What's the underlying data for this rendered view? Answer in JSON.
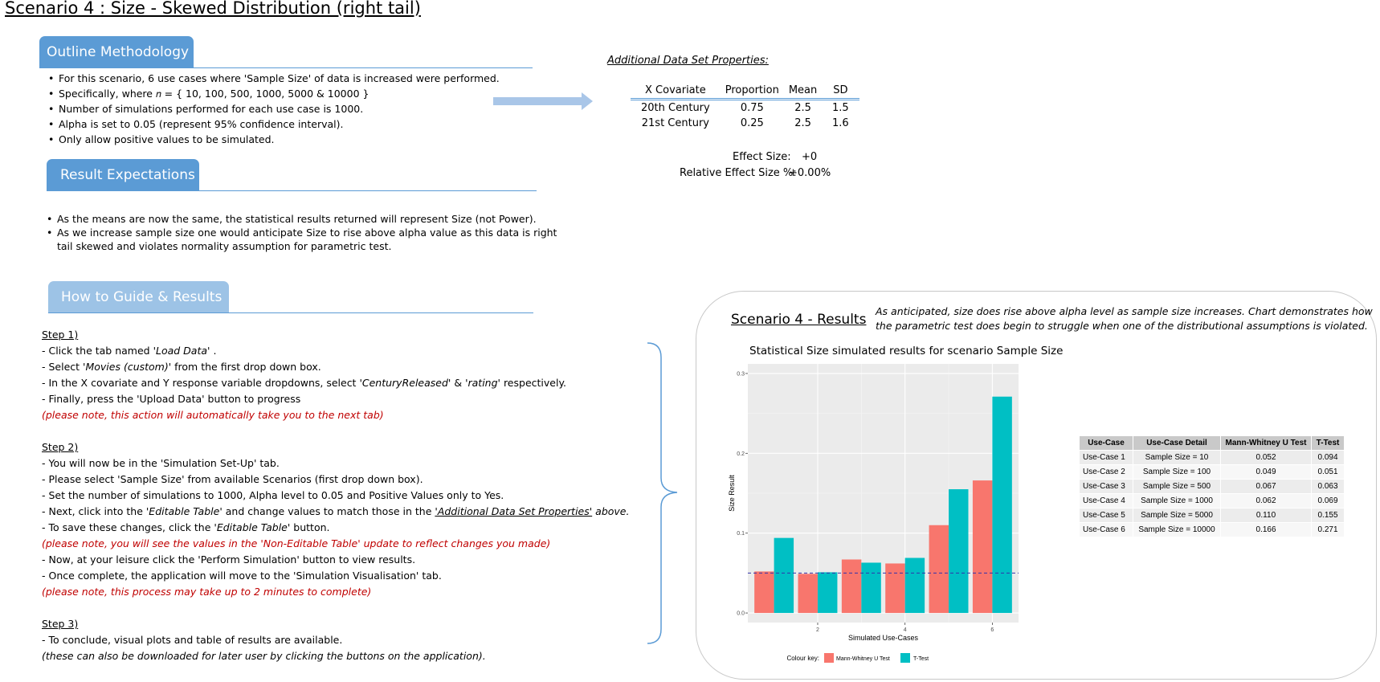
{
  "page_title": "Scenario 4 : Size - Skewed Distribution (right tail)",
  "outline": {
    "heading": "Outline Methodology",
    "bullets": [
      "For this scenario, 6 use cases where 'Sample Size' of data is increased were performed.",
      "Specifically, where 𝑛 = { 10, 100, 500, 1000, 5000 & 10000 }",
      "Number of simulations performed for each use case is 1000.",
      "Alpha is set to 0.05 (represent 95% confidence interval).",
      "Only allow positive values to be simulated."
    ]
  },
  "expectations": {
    "heading": "Result Expectations",
    "bullets": [
      "As the means are now the same, the statistical results returned will represent Size (not Power).",
      "As we increase sample size one would anticipate Size to rise above alpha value as this data is right",
      "tail skewed and violates normality assumption for parametric test."
    ]
  },
  "guide": {
    "heading": "How to Guide & Results",
    "step1": {
      "title": "Step 1)",
      "l1a": "- Click the tab named ",
      "l1b": "'Load Data'",
      "l1c": " .",
      "l2a": "- Select ",
      "l2b": "'Movies (custom)'",
      "l2c": "  from the first drop down box.",
      "l3a": "- In the X covariate and Y response variable dropdowns, select ",
      "l3b": "'CenturyReleased'",
      "l3c": "  & ",
      "l3d": "'rating'",
      "l3e": "  respectively.",
      "l4": "- Finally, press the 'Upload Data' button to progress",
      "note": "(please note, this action will automatically take you to the next tab)"
    },
    "step2": {
      "title": "Step 2)",
      "l1": "- You will now be in the 'Simulation Set-Up' tab.",
      "l2": "- Please select 'Sample Size' from available Scenarios (first drop down box).",
      "l3": "- Set the number of simulations to 1000, Alpha level to 0.05 and Positive Values only to Yes.",
      "l4a": "- Next, click into the ",
      "l4b": "'Editable Table'",
      "l4c": "  and change values to match those in the  ",
      "l4d": "'Additional Data Set Properties'",
      "l4e": "  above.",
      "l5a": "- To save these changes, click the ",
      "l5b": "'Editable Table'",
      "l5c": "  button.",
      "note1": "(please note, you will see the values in the 'Non-Editable Table' update to reflect changes you made)",
      "l6": "- Now, at your leisure click the 'Perform Simulation' button to view results.",
      "l7": "- Once complete, the application will move to the 'Simulation Visualisation' tab.",
      "note2": "(please note, this process may take up to 2 minutes to complete)"
    },
    "step3": {
      "title": "Step 3)",
      "l1": "- To conclude, visual plots and table of results are available.",
      "l2": " (these can also be downloaded for later user by clicking the buttons on the application)."
    }
  },
  "properties": {
    "title": "Additional Data Set Properties:",
    "headers": [
      "X Covariate",
      "Proportion",
      "Mean",
      "SD"
    ],
    "rows": [
      [
        "20th Century",
        "0.75",
        "2.5",
        "1.5"
      ],
      [
        "21st Century",
        "0.25",
        "2.5",
        "1.6"
      ]
    ],
    "effect_size_label": "Effect Size:",
    "effect_size_value": "+0",
    "relative_label": "Relative Effect Size %:",
    "relative_value": "+0.00%"
  },
  "results": {
    "heading": "Scenario 4 - Results",
    "note_line1": "As anticipated, size does rise above alpha level as sample size increases. Chart demonstrates how",
    "note_line2": "the parametric test does begin to struggle when one of the distributional assumptions is violated.",
    "table": {
      "headers": [
        "Use-Case",
        "Use-Case Detail",
        "Mann-Whitney U Test",
        "T-Test"
      ],
      "rows": [
        [
          "Use-Case 1",
          "Sample Size = 10",
          "0.052",
          "0.094"
        ],
        [
          "Use-Case 2",
          "Sample Size = 100",
          "0.049",
          "0.051"
        ],
        [
          "Use-Case 3",
          "Sample Size = 500",
          "0.067",
          "0.063"
        ],
        [
          "Use-Case 4",
          "Sample Size = 1000",
          "0.062",
          "0.069"
        ],
        [
          "Use-Case 5",
          "Sample Size = 5000",
          "0.110",
          "0.155"
        ],
        [
          "Use-Case 6",
          "Sample Size = 10000",
          "0.166",
          "0.271"
        ]
      ]
    }
  },
  "colors": {
    "accent_blue": "#5b9bd5",
    "tab_light_blue": "#9dc3e6",
    "note_red": "#c00000",
    "series_mw": "#f8766d",
    "series_tt": "#00bfc4",
    "alpha_line": "#3333aa"
  },
  "chart_data": {
    "type": "bar",
    "title": "Statistical Size simulated results for scenario Sample Size",
    "xlabel": "Simulated Use-Cases",
    "ylabel": "Size Result",
    "x": [
      1,
      2,
      3,
      4,
      5,
      6
    ],
    "x_ticks": [
      2,
      4,
      6
    ],
    "y_ticks": [
      0.0,
      0.1,
      0.2,
      0.3
    ],
    "y_tick_labels": [
      "0.0",
      "0.1",
      "0.2",
      "0.3"
    ],
    "ylim": [
      0,
      0.3
    ],
    "series": [
      {
        "name": "Mann-Whitney U Test",
        "values": [
          0.052,
          0.049,
          0.067,
          0.062,
          0.11,
          0.166
        ]
      },
      {
        "name": "T-Test",
        "values": [
          0.094,
          0.051,
          0.063,
          0.069,
          0.155,
          0.271
        ]
      }
    ],
    "reference_line": {
      "y": 0.05,
      "style": "dashed"
    },
    "legend_title": "Colour key:",
    "legend_position": "bottom",
    "grid": true
  }
}
